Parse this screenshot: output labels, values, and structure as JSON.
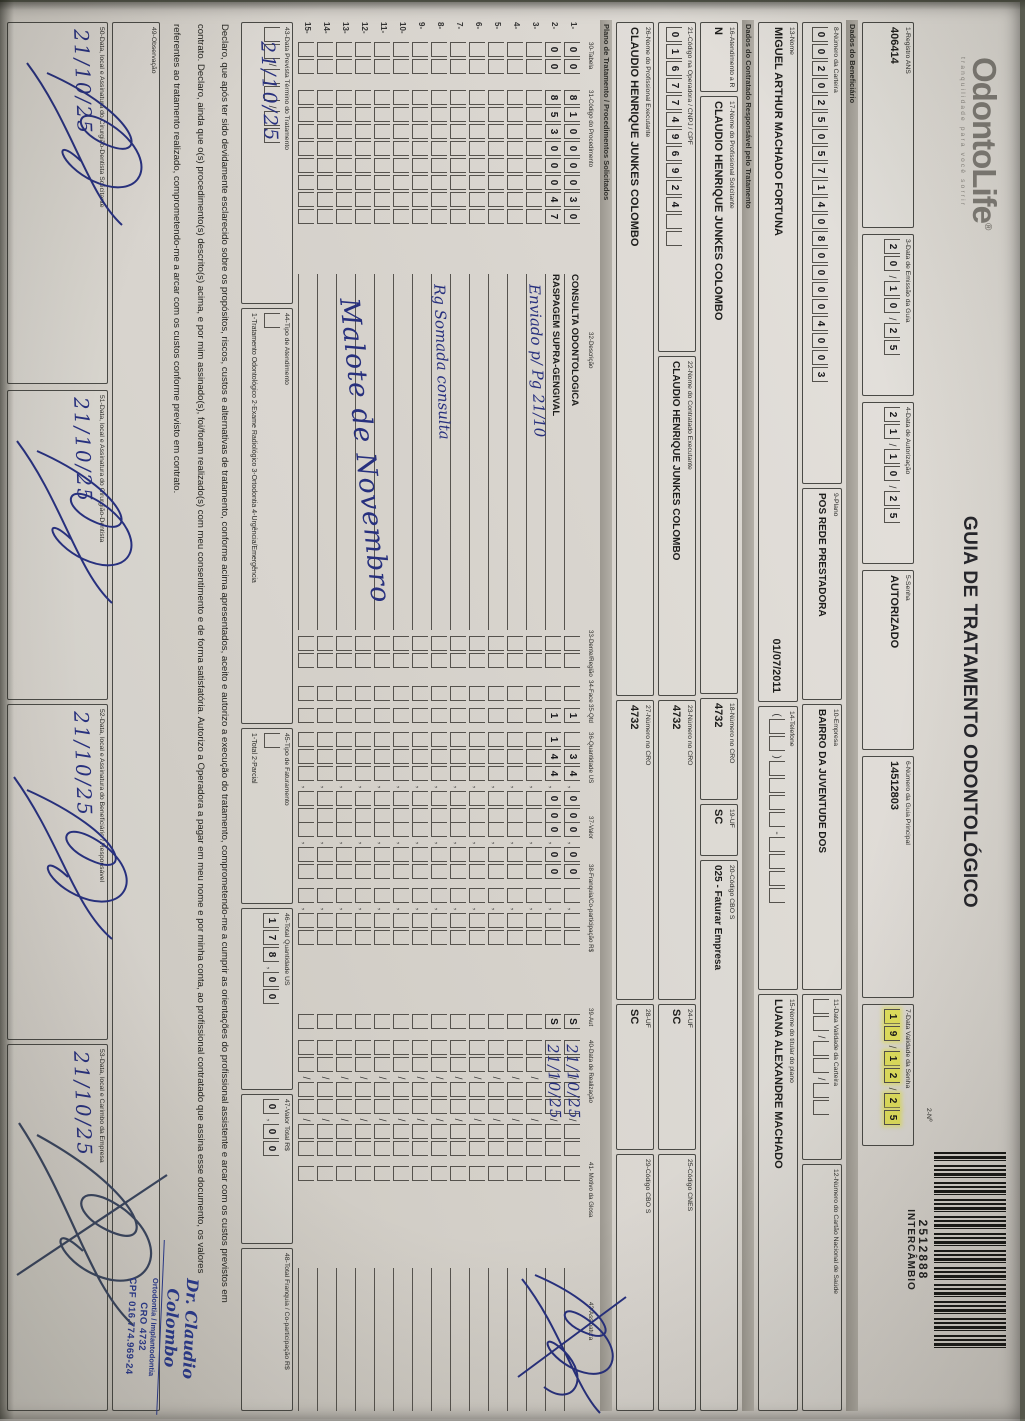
{
  "colors": {
    "ink_blue": "#27307e",
    "highlight_yellow": "#e3e25e",
    "paper": "#d8d4ce"
  },
  "header": {
    "logo": "OdontoLife",
    "logo_reg": "®",
    "tagline": "tranquilidade para você sorrir",
    "title": "GUIA DE TRATAMENTO ODONTOLÓGICO",
    "numero_label": "2-Nº",
    "numero": "2512888",
    "tipo": "INTERCÂMBIO"
  },
  "fields": {
    "f1_label": "1-Registro ANS",
    "f1_value": "406414",
    "f3_label": "3-Data de Emissão da Guia",
    "f3_value": "20/10/25",
    "f4_label": "4-Data de Autorização",
    "f4_value": "21/10/25",
    "f5_label": "5-Senha",
    "f5_value": "AUTORIZADO",
    "f6_label": "6-Número da Guia Principal",
    "f6_value": "14512803",
    "f7_label": "7-Data Validade da Senha",
    "f7_value": "19/12/25",
    "f8_label": "8-Número da Carteira",
    "f8_value": "002025057140800004003",
    "f9_label": "9-Plano",
    "f9_value": "POS REDE PRESTADORA",
    "f10_label": "10-Empresa",
    "f10_value": "BAIRRO DA JUVENTUDE DOS",
    "f11_label": "11-Data Validade da Carteira",
    "f11_value": "··/··/··",
    "f12_label": "12-Número do Cartão Nacional de Saúde",
    "f12_value": "",
    "f13_label": "13-Nome",
    "f13_value": "MIGUEL ARTHUR MACHADO FORTUNA",
    "f13_extra": "01/07/2011",
    "f14_label": "14-Telefone",
    "f14_value": "(··)····-····",
    "f15_label": "15-Nome do titular do plano",
    "f15_value": "LUANA ALEXANDRE MACHADO",
    "f16_label": "16-Atendimento a RN",
    "f16_value": "N",
    "f17_label": "17-Nome do Profissional Solicitante",
    "f17_value": "CLAUDIO HENRIQUE JUNKES COLOMBO",
    "f18_label": "18-Número no CRO",
    "f18_value": "4732",
    "f19_label": "19-UF",
    "f19_value": "SC",
    "f20_label": "20-Código CBO S",
    "f20_value": "025 - Faturar Empresa",
    "f21_label": "21-Código na Operadora / CNPJ / CPF",
    "f21_value": "01677496924··",
    "f22_label": "22-Nome do Contratado Executante",
    "f22_value": "CLAUDIO HENRIQUE JUNKES COLOMBO",
    "f23_label": "23-Número no CRO",
    "f23_value": "4732",
    "f24_label": "24-UF",
    "f24_value": "SC",
    "f25_label": "25-Código CNES",
    "f25_value": "",
    "f26_label": "26-Nome do Profissional Executante",
    "f26_value": "CLAUDIO HENRIQUE JUNKES COLOMBO",
    "f27_label": "27-Número no CRO",
    "f27_value": "4732",
    "f28_label": "28-UF",
    "f28_value": "SC",
    "f29_label": "29-Código CBO S",
    "f29_value": ""
  },
  "sections": {
    "beneficiario": "Dados do Beneficiário",
    "contratado": "Dados do Contratado Responsável pelo Tratamento",
    "plano": "Plano de Tratamento / Procedimentos Solicitados"
  },
  "table": {
    "headers": [
      "30-Tabela",
      "31-Código do Procedimento",
      "32-Descrição",
      "33-Dente/Região",
      "34-Face",
      "35-Qtd",
      "36-Quantidade US",
      "37-Valor",
      "38-Franquia/Co-participação R$",
      "39-Aut",
      "40-Data de Realização",
      "41- Motivo da Glosa",
      "42-Assinatura"
    ],
    "rows": [
      {
        "num": "1-",
        "tabela": "00",
        "codigo": "81000030",
        "descricao": "CONSULTA ODONTOLOGICA",
        "qtd": "1",
        "us": "·34,00",
        "valor": "0,00",
        "aut": "S",
        "data_hand": "21/10/25"
      },
      {
        "num": "2-",
        "tabela": "00",
        "codigo": "85300047",
        "descricao": "RASPAGEM SUPRA-GENGIVAL",
        "qtd": "1",
        "us": "144,00",
        "valor": "0,00",
        "aut": "S",
        "data_hand": "21/10/25"
      },
      {
        "num": "3-",
        "note": "Enviado p/ Pg 21/10"
      },
      {
        "num": "4-"
      },
      {
        "num": "5-"
      },
      {
        "num": "6-"
      },
      {
        "num": "7-"
      },
      {
        "num": "8-",
        "note": "Rg Somada consulta"
      },
      {
        "num": "9-"
      },
      {
        "num": "10-"
      },
      {
        "num": "11-"
      },
      {
        "num": "12-"
      },
      {
        "num": "13-"
      },
      {
        "num": "14-"
      },
      {
        "num": "15-"
      }
    ],
    "big_note": "Malote de Novembro"
  },
  "totals": {
    "f43_label": "43-Data Prevista Término do Tratamento",
    "f43_mask": "··/··/··",
    "f43_hand": "21/10/25",
    "f44_label": "44-Tipo de Atendimento",
    "f44_options": "1-Tratamento Odontológico   2-Exame Radiológico   3-Ortodontia   4-Urgência/Emergência",
    "f45_label": "45-Tipo de Faturamento",
    "f45_options": "1-Total  2-Parcial",
    "f46_label": "46-Total Quantidade US",
    "f46_value": "178,00",
    "f47_label": "47-Valor Total R$",
    "f47_value": "0,00",
    "f48_label": "48-Total Franquia / Co-participação R$"
  },
  "declaration": [
    "Declaro, que após ter sido devidamente esclarecido sobre os propósitos, riscos, custos e alternativas de tratamento, conforme acima apresentados, aceito e autorizo a execução do tratamento, comprometendo-me a cumprir as orientações do profissional assistente e arcar com os custos previstos em",
    "contrato. Declaro, ainda que o(s) procedimento(s) descrito(s) acima, e por mim assinado(s), foi/foram realizado(s) com meu consentimento e de forma satisfatória. Autorizo a Operadora a pagar em meu nome e por minha conta, ao profissional contratado que assina esse documento, os valores",
    "referentes ao tratamento realizado, comprometendo-me a arcar com os custos conforme previsto em contrato."
  ],
  "observacao_label": "49-Observação",
  "signatures": [
    {
      "label": "50-Data, local e Assinatura do Cirurgião-Dentista Solicitante",
      "hand": "21/10/25"
    },
    {
      "label": "51-Data, local e Assinatura do Cirurgião-Dentista",
      "hand": "21/10/25"
    },
    {
      "label": "52-Data, local e Assinatura do Beneficiário / Responsável",
      "hand": "21/10/25"
    },
    {
      "label": "53-Data, local e Carimbo da Empresa",
      "hand": "21/10/25"
    }
  ],
  "stamp": {
    "line1": "Dr. Claudio Colombo",
    "line2": "Ortodontia / Implantodontia",
    "line3": "CRO 4732",
    "line4": "CPF 016.774.969-24"
  }
}
